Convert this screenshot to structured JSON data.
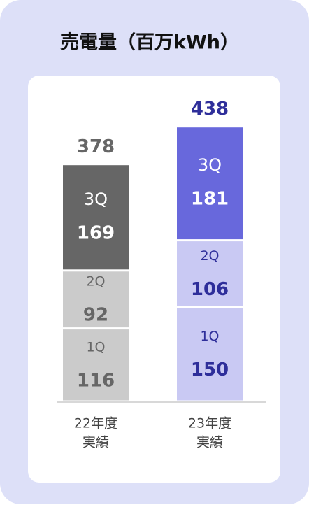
{
  "chart_data": {
    "type": "stacked_bar",
    "title": "売電量（百万kWh）",
    "categories": [
      [
        "22年度",
        "実績"
      ],
      [
        "23年度",
        "実績"
      ]
    ],
    "series": [
      {
        "name": "1Q",
        "values": [
          116,
          150
        ],
        "colors": [
          "#cbcbcb",
          "#c9c9f3"
        ],
        "label_colors": [
          "#666666",
          "#2e2e9a"
        ]
      },
      {
        "name": "2Q",
        "values": [
          92,
          106
        ],
        "colors": [
          "#cbcbcb",
          "#c9c9f3"
        ],
        "label_colors": [
          "#666666",
          "#2e2e9a"
        ]
      },
      {
        "name": "3Q",
        "values": [
          169,
          181
        ],
        "colors": [
          "#666666",
          "#6868dc"
        ],
        "label_colors": [
          "#ffffff",
          "#ffffff"
        ]
      }
    ],
    "totals": [
      378,
      438
    ],
    "total_colors": [
      "#666666",
      "#2e2e9a"
    ]
  }
}
